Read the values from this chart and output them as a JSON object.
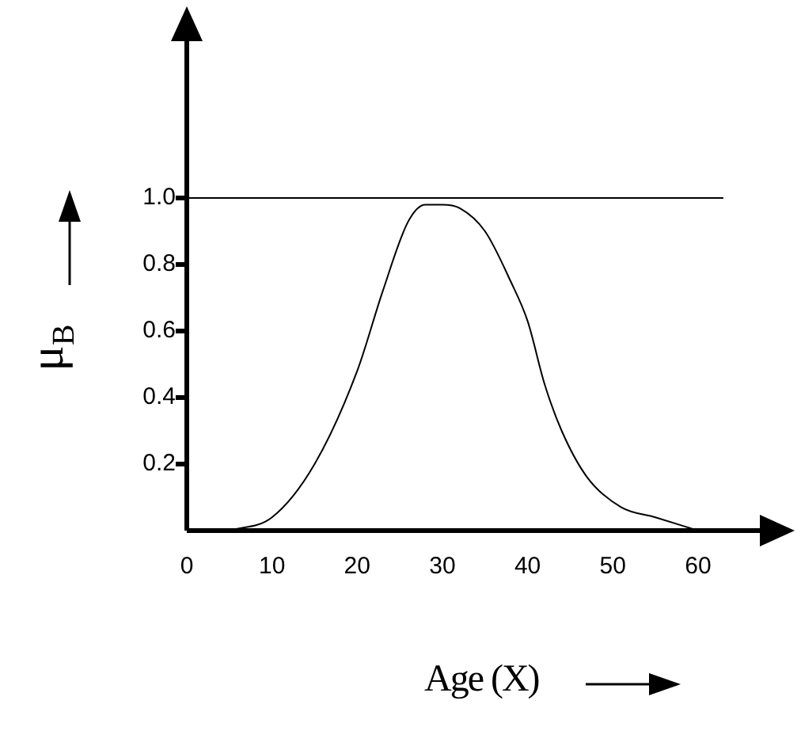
{
  "chart_data": {
    "type": "line",
    "xlabel": "Age (X)",
    "ylabel": "μ$_{B}$",
    "x": [
      5,
      10,
      15,
      20,
      23,
      26,
      28,
      30,
      32,
      35,
      38,
      40,
      42,
      44,
      47,
      51,
      55,
      60
    ],
    "series": [
      {
        "color": "#000000",
        "values": [
          0,
          0.04,
          0.2,
          0.48,
          0.72,
          0.93,
          0.98,
          0.98,
          0.97,
          0.9,
          0.75,
          0.63,
          0.44,
          0.3,
          0.16,
          0.07,
          0.04,
          0
        ]
      }
    ],
    "xlim": [
      0,
      68
    ],
    "xticks": [
      0,
      10,
      20,
      30,
      40,
      50,
      60
    ],
    "ylim": [
      0,
      1.5
    ],
    "yticks": [
      {
        "value": 0.2,
        "label": "0.2"
      },
      {
        "value": 0.4,
        "label": "0.4"
      },
      {
        "value": 0.6,
        "label": "0.6"
      },
      {
        "value": 0.8,
        "label": "0.8"
      },
      {
        "value": 1.0,
        "label": "1.0"
      }
    ],
    "ref_lines": [
      {
        "axis": "y",
        "value": 1.0,
        "color": "#000000"
      }
    ],
    "grid": false,
    "legend": false,
    "marker": "none",
    "line_style": "solid"
  }
}
